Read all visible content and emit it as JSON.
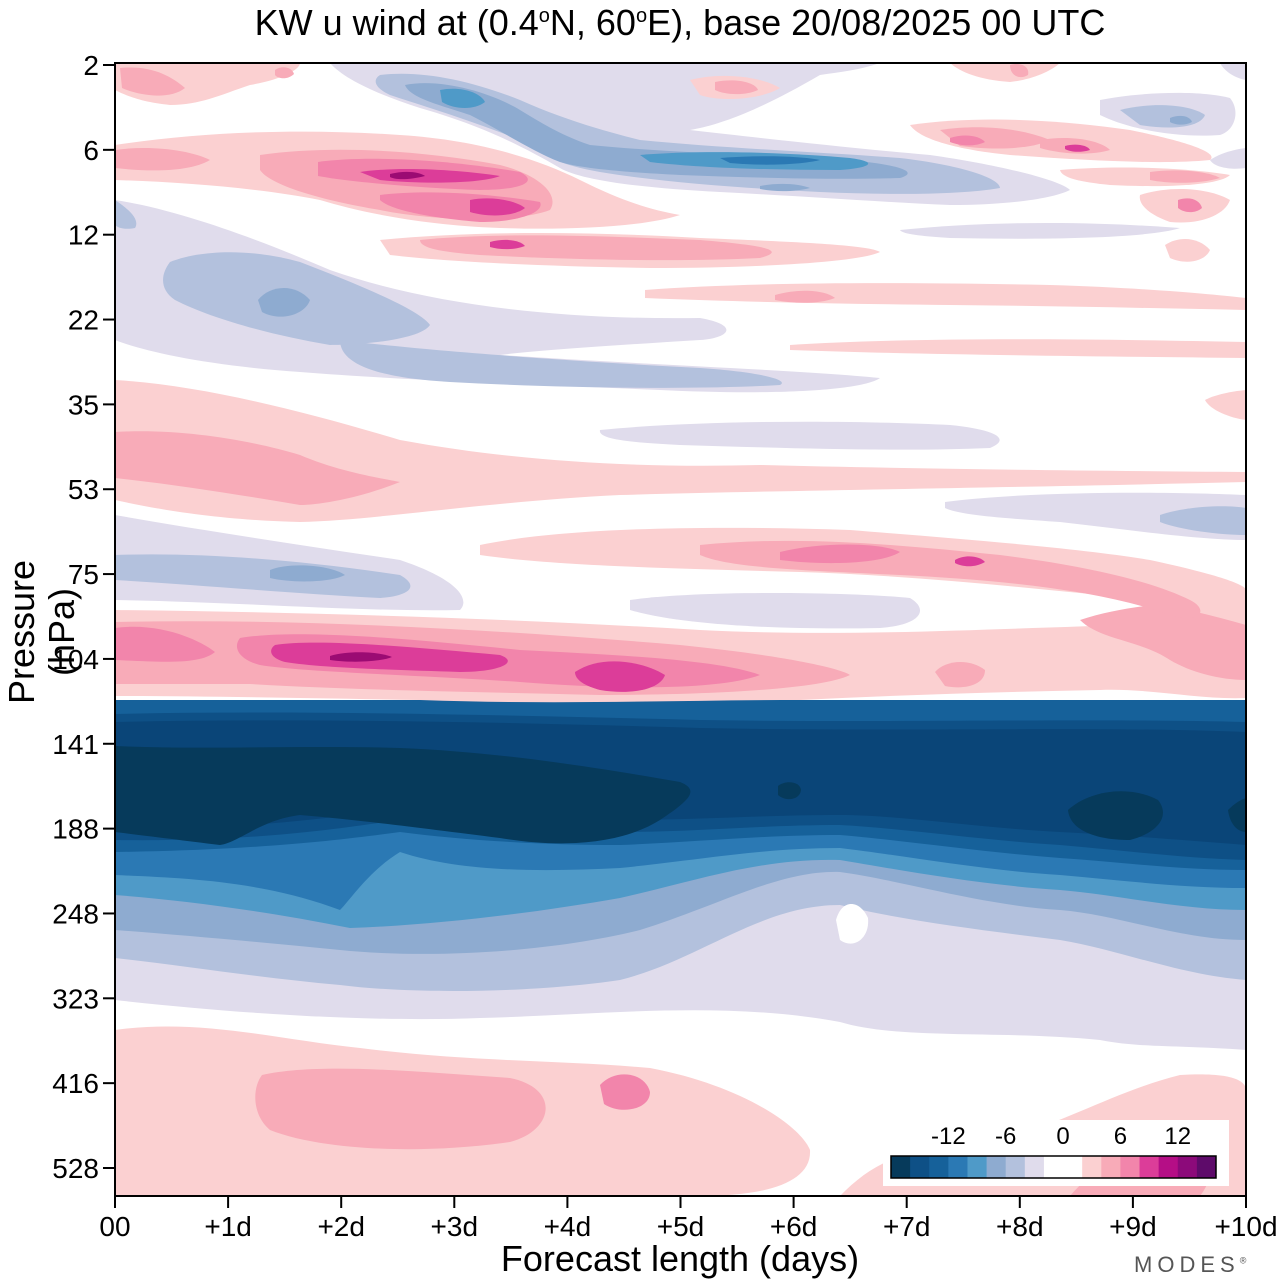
{
  "chart_data": {
    "type": "heatmap",
    "title": {
      "prefix": "KW u wind at (0.4",
      "deg1": "o",
      "mid": "N, 60",
      "deg2": "o",
      "suffix": "E),  base 20/08/2025  00 UTC"
    },
    "xlabel": "Forecast length (days)",
    "ylabel": "Pressure (hPa)",
    "x_ticks": [
      "00",
      "+1d",
      "+2d",
      "+3d",
      "+4d",
      "+5d",
      "+6d",
      "+7d",
      "+8d",
      "+9d",
      "+10d"
    ],
    "x_range_days": [
      0,
      10
    ],
    "y_ticks": [
      2,
      6,
      12,
      22,
      35,
      53,
      75,
      104,
      141,
      188,
      248,
      323,
      416,
      528
    ],
    "y_scale": "log",
    "y_inverted": true,
    "colorbar": {
      "tick_labels": [
        "-12",
        "-6",
        "0",
        "6",
        "12"
      ],
      "tick_values": [
        -12,
        -6,
        0,
        6,
        12
      ],
      "levels": [
        -16,
        -14,
        -12,
        -10,
        -8,
        -6,
        -4,
        -2,
        0,
        2,
        4,
        6,
        8,
        10,
        12,
        14,
        16
      ],
      "placement": "bottom-right inset"
    },
    "layers": [
      {
        "name": "upper-stratosphere-mixed",
        "p_top": 2,
        "p_bottom": 6,
        "from_day": 0,
        "to_day": 10,
        "value": 2
      },
      {
        "name": "easterly-core-6hPa",
        "p_top": 4,
        "p_bottom": 9,
        "from_day": 3.5,
        "to_day": 8,
        "value": -8
      },
      {
        "name": "westerly-core-8hPa",
        "p_top": 7,
        "p_bottom": 10,
        "from_day": 1,
        "to_day": 4,
        "value": 10
      },
      {
        "name": "westerly-band-12hPa",
        "p_top": 11,
        "p_bottom": 14,
        "from_day": 2.5,
        "to_day": 6.5,
        "value": 5
      },
      {
        "name": "easterly-band-22hPa",
        "p_top": 14,
        "p_bottom": 30,
        "from_day": 0,
        "to_day": 6.5,
        "value": -4
      },
      {
        "name": "westerly-band-45hPa",
        "p_top": 35,
        "p_bottom": 60,
        "from_day": 0,
        "to_day": 8,
        "value": 3
      },
      {
        "name": "easterly-band-75hPa",
        "p_top": 60,
        "p_bottom": 90,
        "from_day": 0,
        "to_day": 3,
        "value": -4
      },
      {
        "name": "westerly-band-70hPa",
        "p_top": 62,
        "p_bottom": 88,
        "from_day": 5.5,
        "to_day": 10,
        "value": 4
      },
      {
        "name": "westerly-core-104hPa",
        "p_top": 95,
        "p_bottom": 120,
        "from_day": 0,
        "to_day": 6.5,
        "value": 10
      },
      {
        "name": "jet-easterly-160hPa",
        "p_top": 130,
        "p_bottom": 260,
        "from_day": 0,
        "to_day": 10,
        "value": -16
      },
      {
        "name": "easterly-tail-300hPa",
        "p_top": 248,
        "p_bottom": 380,
        "from_day": 0,
        "to_day": 10,
        "value": -3
      },
      {
        "name": "westerly-band-450hPa",
        "p_top": 380,
        "p_bottom": 600,
        "from_day": 0,
        "to_day": 6.2,
        "value": 3
      }
    ]
  },
  "watermark": "MODES",
  "watermark_mark": "®"
}
